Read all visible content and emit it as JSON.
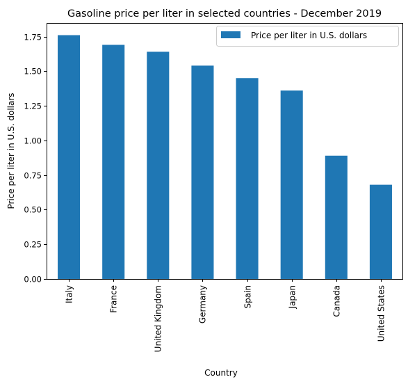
{
  "chart_data": {
    "type": "bar",
    "title": "Gasoline price per liter in selected countries - December 2019",
    "xlabel": "Country",
    "ylabel": "Price per liter in U.S. dollars",
    "categories": [
      "Italy",
      "France",
      "United Kingdom",
      "Germany",
      "Spain",
      "Japan",
      "Canada",
      "United States"
    ],
    "series": [
      {
        "name": "Price per liter in U.S. dollars",
        "values": [
          1.76,
          1.69,
          1.64,
          1.54,
          1.45,
          1.36,
          0.89,
          0.68
        ],
        "color": "#1f77b4"
      }
    ],
    "ylim": [
      0,
      1.848
    ],
    "yticks": [
      0.0,
      0.25,
      0.5,
      0.75,
      1.0,
      1.25,
      1.5,
      1.75
    ],
    "ytick_labels": [
      "0.00",
      "0.25",
      "0.50",
      "0.75",
      "1.00",
      "1.25",
      "1.50",
      "1.75"
    ],
    "grid": false,
    "legend_position": "top-right"
  }
}
